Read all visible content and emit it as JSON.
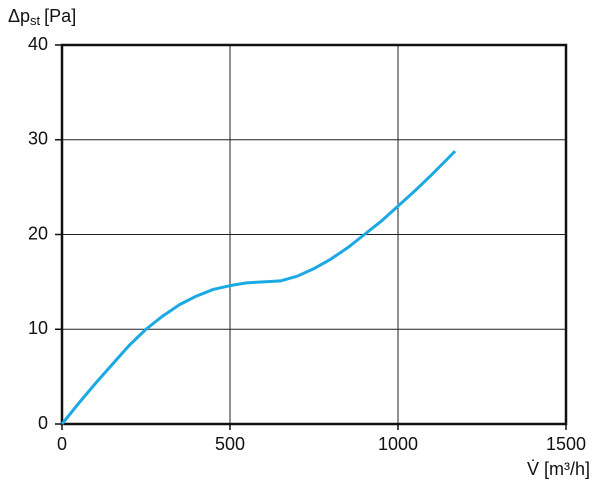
{
  "chart_data": {
    "type": "line",
    "y_label": {
      "symbol": "Δp",
      "subscript": "st",
      "unit": "[Pa]"
    },
    "x_label": "V̇ [m³/h]",
    "x": [
      0,
      50,
      100,
      150,
      200,
      250,
      300,
      350,
      400,
      450,
      500,
      550,
      600,
      650,
      700,
      750,
      800,
      850,
      900,
      950,
      1000,
      1050,
      1100,
      1170
    ],
    "series": [
      {
        "color": "#1aa9e3",
        "values": [
          0,
          2.2,
          4.3,
          6.3,
          8.3,
          10,
          11.4,
          12.6,
          13.5,
          14.2,
          14.6,
          14.9,
          15,
          15.1,
          15.6,
          16.4,
          17.4,
          18.6,
          20,
          21.4,
          23,
          24.6,
          26.3,
          28.8
        ]
      }
    ],
    "xlim": [
      0,
      1500
    ],
    "xticks": [
      0,
      500,
      1000,
      1500
    ],
    "ylim": [
      0,
      40
    ],
    "yticks": [
      0,
      10,
      20,
      30,
      40
    ],
    "grid": true
  }
}
